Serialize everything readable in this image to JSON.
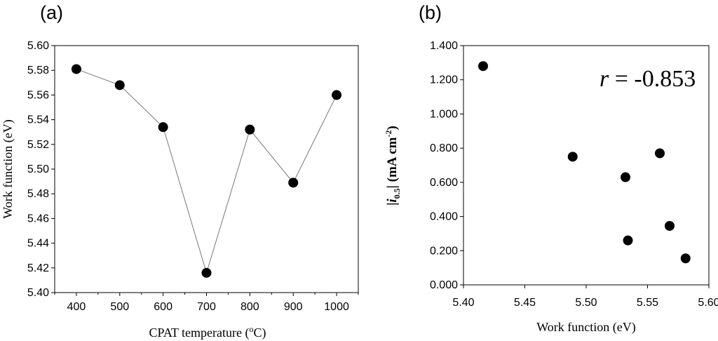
{
  "chart_data": [
    {
      "type": "line",
      "panel_label": "(a)",
      "x": [
        400,
        500,
        600,
        700,
        800,
        900,
        1000
      ],
      "y": [
        5.581,
        5.568,
        5.534,
        5.416,
        5.532,
        5.489,
        5.56
      ],
      "xlabel_text": "CPAT temperature (",
      "xlabel_sup": "o",
      "xlabel_tail": "C)",
      "ylabel": "Work function (eV)",
      "xticks": [
        "400",
        "500",
        "600",
        "700",
        "800",
        "900",
        "1000"
      ],
      "yticks": [
        "5.40",
        "5.42",
        "5.44",
        "5.46",
        "5.48",
        "5.50",
        "5.52",
        "5.54",
        "5.56",
        "5.58",
        "5.60"
      ],
      "xlim": [
        350,
        1050
      ],
      "ylim": [
        5.4,
        5.6
      ],
      "grid": false,
      "marker_color": "#000000",
      "line_color": "#777777"
    },
    {
      "type": "scatter",
      "panel_label": "(b)",
      "x": [
        5.416,
        5.489,
        5.532,
        5.534,
        5.56,
        5.568,
        5.581
      ],
      "y": [
        1.28,
        0.75,
        0.63,
        0.26,
        0.77,
        0.345,
        0.155
      ],
      "xlabel": "Work function (eV)",
      "ylabel_pre": "|",
      "ylabel_var": "i",
      "ylabel_sub": "0.5",
      "ylabel_mid": "| (mA cm",
      "ylabel_sup": "-2",
      "ylabel_tail": ")",
      "xticks": [
        "5.40",
        "5.45",
        "5.50",
        "5.55",
        "5.60"
      ],
      "yticks": [
        "0.000",
        "0.200",
        "0.400",
        "0.600",
        "0.800",
        "1.000",
        "1.200",
        "1.400"
      ],
      "xlim": [
        5.4,
        5.6
      ],
      "ylim": [
        0.0,
        1.4
      ],
      "annotation_var": "r",
      "annotation_text": " = -0.853",
      "grid": false,
      "marker_color": "#000000"
    }
  ]
}
